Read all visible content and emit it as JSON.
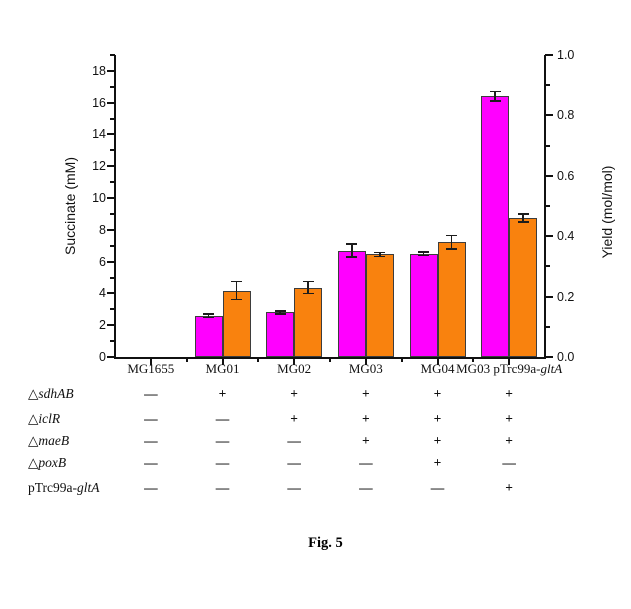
{
  "chart_data": {
    "type": "bar",
    "title": "",
    "categories": [
      "MG1655",
      "MG01",
      "MG02",
      "MG03",
      "MG04",
      "MG03 pTrc99a-gltA"
    ],
    "category_segments": [
      [
        {
          "text": "MG1655"
        }
      ],
      [
        {
          "text": "MG01"
        }
      ],
      [
        {
          "text": "MG02"
        }
      ],
      [
        {
          "text": "MG03"
        }
      ],
      [
        {
          "text": "MG04"
        }
      ],
      [
        {
          "text": "MG03 pTrc99a-"
        },
        {
          "text": "gltA",
          "italic": true
        }
      ]
    ],
    "series": [
      {
        "name": "Succinate",
        "axis": "left",
        "color": "#FF00FF",
        "border_color": "#3d3d3d",
        "values": [
          0,
          2.6,
          2.8,
          6.7,
          6.5,
          16.4
        ],
        "errors": [
          0,
          0.1,
          0.1,
          0.4,
          0.1,
          0.3
        ]
      },
      {
        "name": "Yield",
        "axis": "right",
        "color": "#F9820E",
        "border_color": "#3d3d3d",
        "values": [
          0,
          0.22,
          0.23,
          0.34,
          0.38,
          0.46
        ],
        "errors": [
          0,
          0.03,
          0.02,
          0.007,
          0.023,
          0.013
        ]
      }
    ],
    "left_axis": {
      "label": "Succinate (mM)",
      "min": 0,
      "max": 19,
      "major_ticks": [
        0,
        2,
        4,
        6,
        8,
        10,
        12,
        14,
        16,
        18
      ],
      "minor_ticks": [
        1,
        3,
        5,
        7,
        9,
        11,
        13,
        15,
        17,
        19
      ]
    },
    "right_axis": {
      "label": "Yield (mol/mol)",
      "min": 0,
      "max": 1.0,
      "major_ticks": [
        "0.0",
        "0.2",
        "0.4",
        "0.6",
        "0.8",
        "1.0"
      ],
      "minor_ticks": [
        0.1,
        0.3,
        0.5,
        0.7,
        0.9
      ]
    },
    "legend": "none",
    "grid": false
  },
  "genotype_table": {
    "rows": [
      {
        "name": "sdhAB",
        "label_segments": [
          {
            "text": "△"
          },
          {
            "text": "sdhAB",
            "italic": true
          }
        ],
        "values": [
          "—",
          "+",
          "+",
          "+",
          "+",
          "+"
        ]
      },
      {
        "name": "iclR",
        "label_segments": [
          {
            "text": "△"
          },
          {
            "text": "iclR",
            "italic": true
          }
        ],
        "values": [
          "—",
          "—",
          "+",
          "+",
          "+",
          "+"
        ]
      },
      {
        "name": "maeB",
        "label_segments": [
          {
            "text": "△"
          },
          {
            "text": "maeB",
            "italic": true
          }
        ],
        "values": [
          "—",
          "—",
          "—",
          "+",
          "+",
          "+"
        ]
      },
      {
        "name": "poxB",
        "label_segments": [
          {
            "text": "△"
          },
          {
            "text": "poxB",
            "italic": true
          }
        ],
        "values": [
          "—",
          "—",
          "—",
          "—",
          "+",
          "—"
        ]
      },
      {
        "name": "pTrc99a-gltA",
        "label_segments": [
          {
            "text": "pTrc99a-"
          },
          {
            "text": "gltA",
            "italic": true
          }
        ],
        "values": [
          "—",
          "—",
          "—",
          "—",
          "—",
          "+"
        ]
      }
    ]
  },
  "caption": "Fig. 5"
}
